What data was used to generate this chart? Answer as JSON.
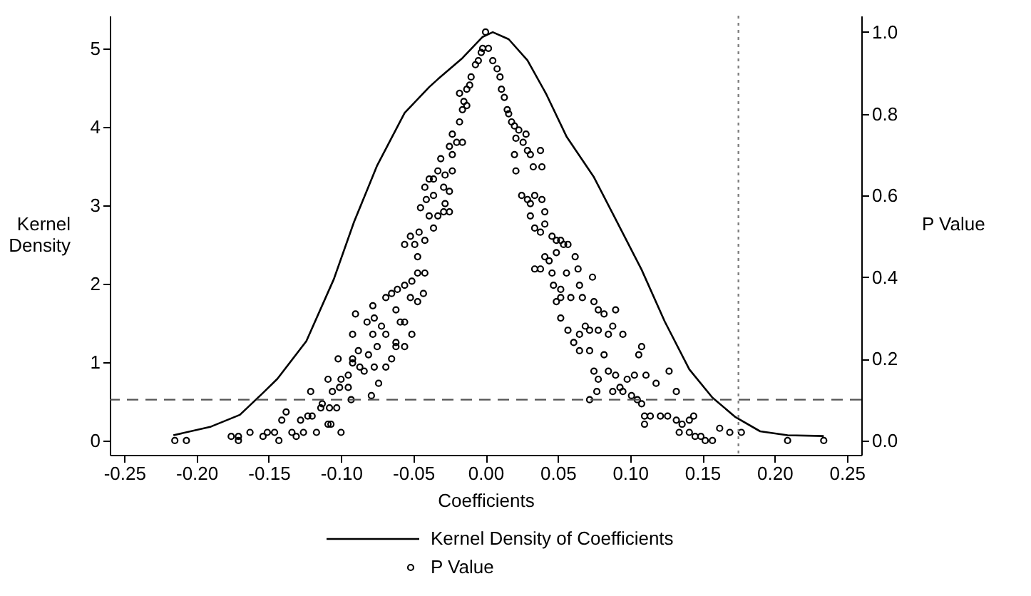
{
  "chart_data": {
    "type": "line",
    "xlabel": "Coefficients",
    "ylabel": "Kernel Density",
    "y2label": "P Value",
    "xlim": [
      -0.26,
      0.26
    ],
    "ylim": [
      -0.18,
      5.42
    ],
    "y2lim": [
      -0.035,
      1.04
    ],
    "xticks": [
      {
        "value": -0.25,
        "label": "-0.25"
      },
      {
        "value": -0.2,
        "label": "-0.20"
      },
      {
        "value": -0.15,
        "label": "-0.15"
      },
      {
        "value": -0.1,
        "label": "-0.10"
      },
      {
        "value": -0.05,
        "label": "-0.05"
      },
      {
        "value": 0,
        "label": "0.00"
      },
      {
        "value": 0.05,
        "label": "0.05"
      },
      {
        "value": 0.1,
        "label": "0.10"
      },
      {
        "value": 0.15,
        "label": "0.15"
      },
      {
        "value": 0.2,
        "label": "0.20"
      },
      {
        "value": 0.25,
        "label": "0.25"
      }
    ],
    "yticks": [
      0,
      1,
      2,
      3,
      4,
      5
    ],
    "y2ticks": [
      {
        "value": 0,
        "label": "0.0"
      },
      {
        "value": 0.2,
        "label": "0.2"
      },
      {
        "value": 0.4,
        "label": "0.4"
      },
      {
        "value": 0.6,
        "label": "0.6"
      },
      {
        "value": 0.8,
        "label": "0.8"
      },
      {
        "value": 1,
        "label": "1.0"
      }
    ],
    "grid": false,
    "legend": "bottom",
    "ref_lines": [
      {
        "axis": "y2",
        "value": 0.1,
        "color": "#555555",
        "line_style": "dashed"
      },
      {
        "axis": "x",
        "value": 0.175,
        "color": "#808080",
        "line_style": "dotted"
      }
    ],
    "series": [
      {
        "name": "Kernel Density of Coefficients",
        "color": "#000000",
        "marker": "none",
        "line_style": "solid",
        "x": [
          -0.216,
          -0.19,
          -0.17,
          -0.154,
          -0.144,
          -0.124,
          -0.105,
          -0.091,
          -0.075,
          -0.056,
          -0.039,
          -0.033,
          -0.016,
          -0.002,
          0.005,
          0.016,
          0.029,
          0.042,
          0.056,
          0.075,
          0.091,
          0.108,
          0.124,
          0.141,
          0.157,
          0.173,
          0.19,
          0.209,
          0.234
        ],
        "values": [
          0.07,
          0.18,
          0.33,
          0.61,
          0.79,
          1.27,
          2.06,
          2.79,
          3.51,
          4.18,
          4.51,
          4.61,
          4.88,
          5.15,
          5.21,
          5.12,
          4.85,
          4.42,
          3.88,
          3.36,
          2.79,
          2.18,
          1.52,
          0.91,
          0.55,
          0.3,
          0.12,
          0.07,
          0.06
        ]
      },
      {
        "name": "P Value",
        "type": "scatter",
        "axis": "y2",
        "color": "#000000",
        "marker": "circle",
        "x": [
          -0.215,
          -0.207,
          -0.176,
          -0.171,
          -0.171,
          -0.163,
          -0.154,
          -0.151,
          -0.146,
          -0.143,
          -0.134,
          -0.131,
          -0.126,
          -0.117,
          -0.109,
          -0.107,
          -0.1,
          -0.141,
          -0.138,
          -0.128,
          -0.123,
          -0.12,
          -0.114,
          -0.113,
          -0.108,
          -0.103,
          -0.121,
          -0.106,
          -0.101,
          -0.095,
          -0.093,
          -0.079,
          -0.109,
          -0.102,
          -0.1,
          -0.095,
          -0.092,
          -0.087,
          -0.084,
          -0.092,
          -0.088,
          -0.081,
          -0.077,
          -0.074,
          -0.069,
          -0.065,
          -0.062,
          -0.056,
          -0.092,
          -0.078,
          -0.075,
          -0.069,
          -0.062,
          -0.051,
          -0.082,
          -0.077,
          -0.072,
          -0.062,
          -0.059,
          -0.056,
          -0.09,
          -0.078,
          -0.069,
          -0.065,
          -0.061,
          -0.056,
          -0.051,
          -0.047,
          -0.042,
          -0.043,
          -0.047,
          -0.052,
          -0.056,
          -0.052,
          -0.049,
          -0.047,
          -0.042,
          -0.046,
          -0.036,
          -0.039,
          -0.033,
          -0.029,
          -0.025,
          -0.028,
          -0.045,
          -0.041,
          -0.036,
          -0.042,
          -0.036,
          -0.029,
          -0.025,
          -0.039,
          -0.033,
          -0.028,
          -0.023,
          -0.031,
          -0.023,
          -0.025,
          -0.02,
          -0.016,
          -0.023,
          -0.018,
          -0.013,
          -0.016,
          -0.015,
          -0.018,
          -0.013,
          -0.011,
          -0.01,
          -0.007,
          -0.005,
          -0.003,
          -0.002,
          0.0,
          0.002,
          0.005,
          0.008,
          0.01,
          0.011,
          0.013,
          0.015,
          0.016,
          0.018,
          0.02,
          0.021,
          0.023,
          0.026,
          0.028,
          0.029,
          0.031,
          0.033,
          0.038,
          0.039,
          0.02,
          0.021,
          0.025,
          0.029,
          0.031,
          0.034,
          0.039,
          0.041,
          0.031,
          0.034,
          0.038,
          0.041,
          0.046,
          0.049,
          0.052,
          0.054,
          0.057,
          0.034,
          0.038,
          0.041,
          0.044,
          0.049,
          0.062,
          0.064,
          0.046,
          0.047,
          0.052,
          0.056,
          0.065,
          0.074,
          0.049,
          0.052,
          0.059,
          0.067,
          0.075,
          0.078,
          0.082,
          0.09,
          0.052,
          0.057,
          0.061,
          0.065,
          0.069,
          0.072,
          0.078,
          0.085,
          0.088,
          0.095,
          0.065,
          0.072,
          0.075,
          0.078,
          0.082,
          0.085,
          0.09,
          0.093,
          0.098,
          0.103,
          0.106,
          0.108,
          0.111,
          0.118,
          0.127,
          0.132,
          0.072,
          0.077,
          0.088,
          0.095,
          0.101,
          0.105,
          0.108,
          0.11,
          0.114,
          0.11,
          0.121,
          0.126,
          0.132,
          0.136,
          0.141,
          0.144,
          0.134,
          0.141,
          0.145,
          0.149,
          0.152,
          0.157,
          0.162,
          0.169,
          0.177,
          0.209,
          0.234
        ],
        "values": [
          0.0,
          0.0,
          0.01,
          0.0,
          0.01,
          0.02,
          0.01,
          0.02,
          0.02,
          0.0,
          0.02,
          0.01,
          0.02,
          0.02,
          0.04,
          0.04,
          0.02,
          0.05,
          0.07,
          0.05,
          0.06,
          0.06,
          0.08,
          0.09,
          0.08,
          0.08,
          0.12,
          0.12,
          0.13,
          0.13,
          0.1,
          0.11,
          0.15,
          0.2,
          0.15,
          0.16,
          0.19,
          0.18,
          0.17,
          0.2,
          0.22,
          0.21,
          0.18,
          0.14,
          0.18,
          0.2,
          0.23,
          0.23,
          0.26,
          0.26,
          0.23,
          0.26,
          0.24,
          0.26,
          0.29,
          0.3,
          0.28,
          0.32,
          0.29,
          0.29,
          0.31,
          0.33,
          0.35,
          0.36,
          0.37,
          0.38,
          0.39,
          0.41,
          0.41,
          0.36,
          0.34,
          0.35,
          0.48,
          0.5,
          0.48,
          0.45,
          0.49,
          0.51,
          0.52,
          0.55,
          0.55,
          0.56,
          0.56,
          0.58,
          0.57,
          0.59,
          0.6,
          0.62,
          0.64,
          0.62,
          0.61,
          0.64,
          0.66,
          0.65,
          0.66,
          0.69,
          0.7,
          0.72,
          0.73,
          0.73,
          0.75,
          0.78,
          0.82,
          0.81,
          0.83,
          0.85,
          0.86,
          0.87,
          0.89,
          0.92,
          0.93,
          0.95,
          0.96,
          1.0,
          0.96,
          0.93,
          0.91,
          0.89,
          0.86,
          0.84,
          0.81,
          0.8,
          0.78,
          0.77,
          0.74,
          0.76,
          0.73,
          0.75,
          0.71,
          0.7,
          0.67,
          0.71,
          0.67,
          0.7,
          0.66,
          0.6,
          0.59,
          0.58,
          0.6,
          0.59,
          0.56,
          0.55,
          0.52,
          0.51,
          0.53,
          0.5,
          0.49,
          0.49,
          0.48,
          0.48,
          0.42,
          0.42,
          0.45,
          0.44,
          0.46,
          0.45,
          0.42,
          0.41,
          0.38,
          0.37,
          0.41,
          0.38,
          0.4,
          0.34,
          0.35,
          0.35,
          0.35,
          0.34,
          0.32,
          0.31,
          0.32,
          0.3,
          0.27,
          0.24,
          0.26,
          0.28,
          0.27,
          0.27,
          0.26,
          0.28,
          0.26,
          0.22,
          0.22,
          0.17,
          0.15,
          0.21,
          0.17,
          0.16,
          0.13,
          0.15,
          0.16,
          0.21,
          0.23,
          0.16,
          0.14,
          0.17,
          0.12,
          0.1,
          0.12,
          0.12,
          0.12,
          0.11,
          0.1,
          0.09,
          0.06,
          0.06,
          0.04,
          0.06,
          0.06,
          0.05,
          0.04,
          0.05,
          0.06,
          0.02,
          0.02,
          0.01,
          0.01,
          0.0,
          0.0,
          0.03,
          0.02,
          0.02,
          0.0,
          0.0
        ]
      }
    ]
  }
}
